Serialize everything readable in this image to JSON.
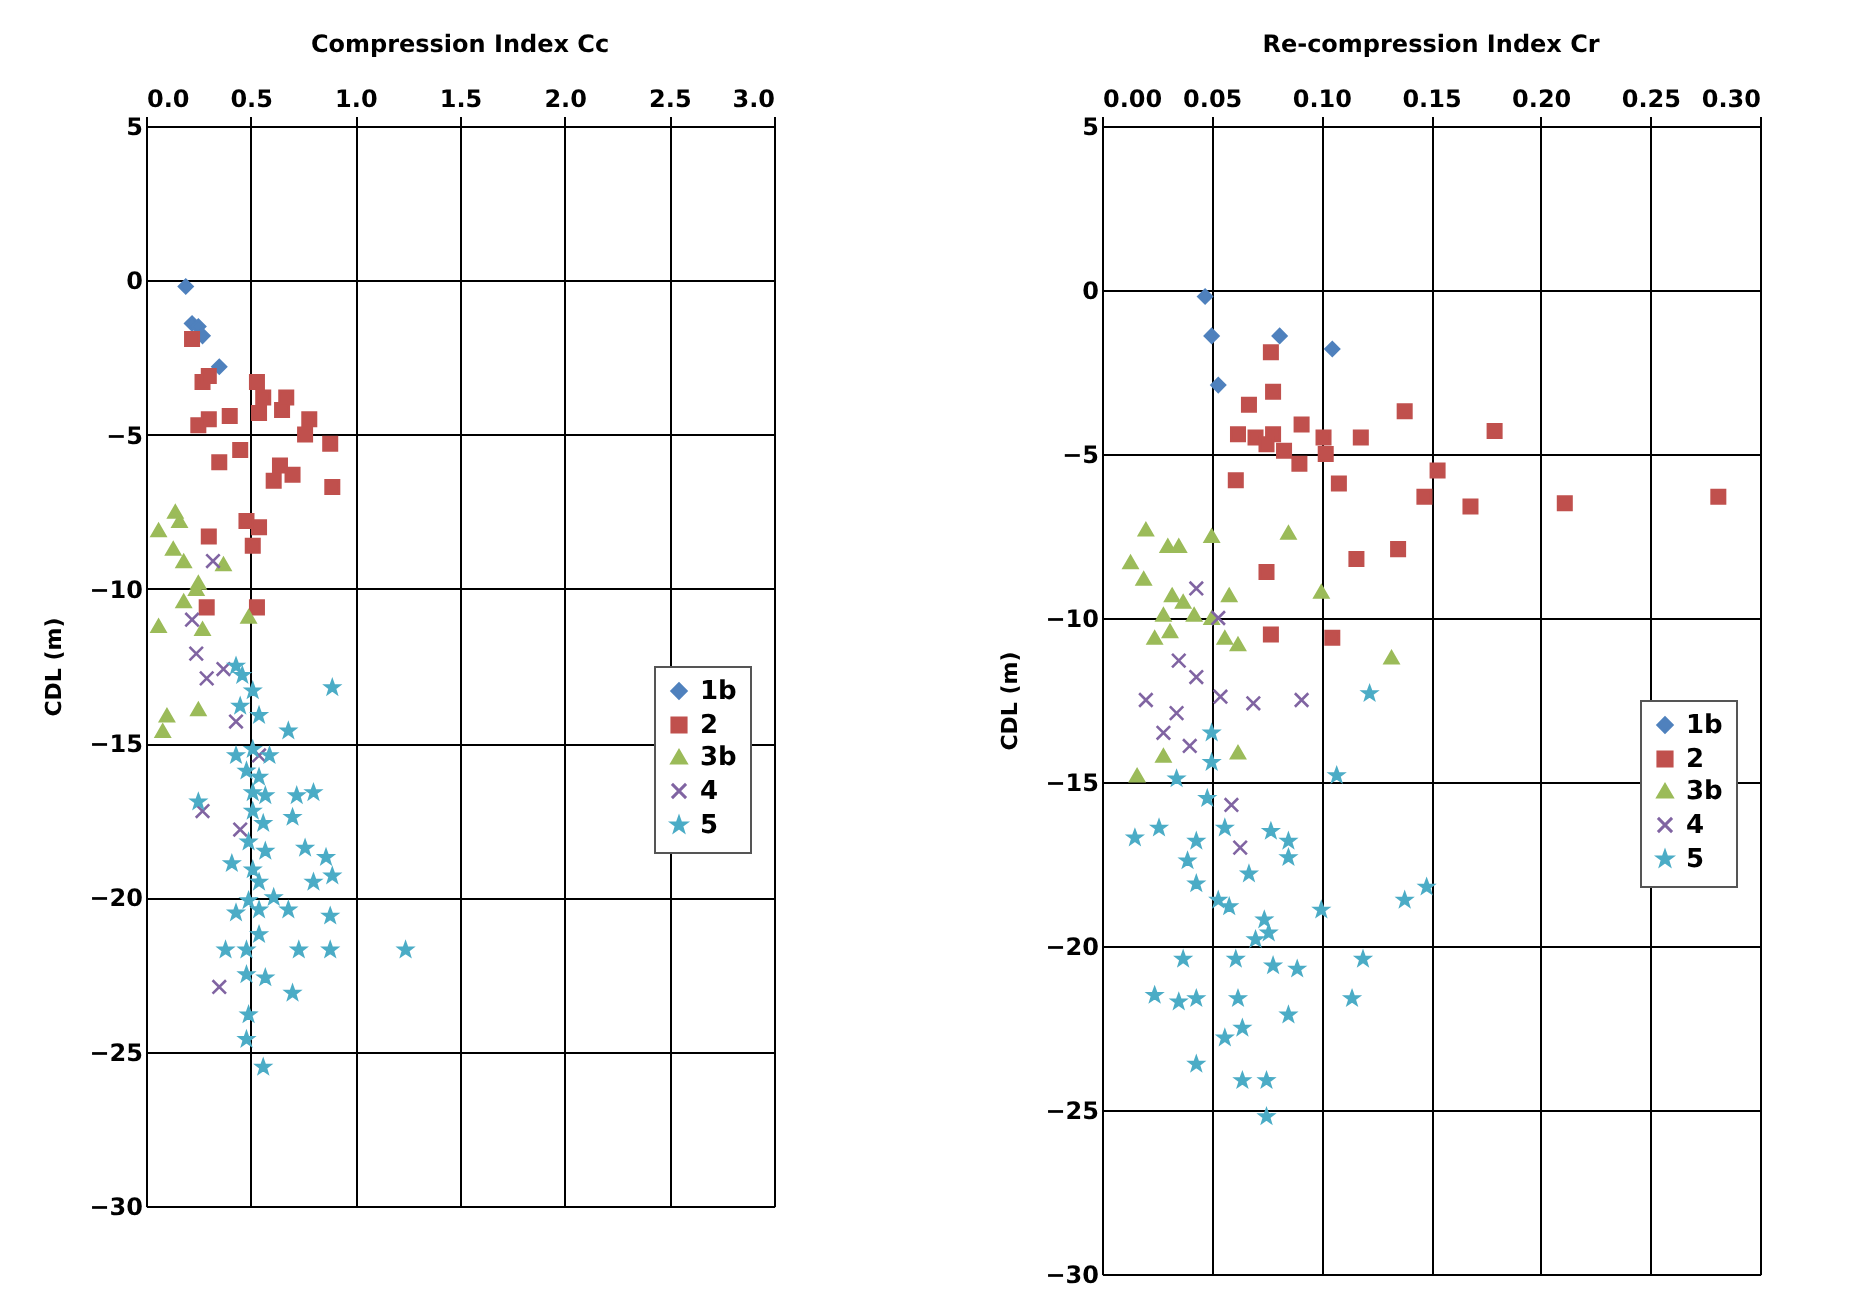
{
  "chart_data": [
    {
      "type": "scatter",
      "title": "Compression Index Cc",
      "ylabel": "CDL (m)",
      "grid": true,
      "legend": "right",
      "xlim": [
        0,
        3
      ],
      "ylim": [
        -30,
        5
      ],
      "xticks": [
        {
          "value": 0,
          "label": "0.0"
        },
        {
          "value": 0.5,
          "label": "0.5"
        },
        {
          "value": 1,
          "label": "1.0"
        },
        {
          "value": 1.5,
          "label": "1.5"
        },
        {
          "value": 2,
          "label": "2.0"
        },
        {
          "value": 2.5,
          "label": "2.5"
        },
        {
          "value": 3,
          "label": "3.0"
        }
      ],
      "yticks": [
        -30,
        -25,
        -20,
        -15,
        -10,
        -5,
        0,
        5
      ],
      "series": [
        {
          "name": "1b",
          "color": "#4f81bd",
          "marker": "diamond",
          "x": [
            0.19,
            0.22,
            0.25,
            0.27,
            0.35
          ],
          "values": [
            -0.2,
            -1.4,
            -1.5,
            -1.8,
            -2.8
          ]
        },
        {
          "name": "2",
          "color": "#c0504d",
          "marker": "square",
          "x": [
            0.22,
            0.27,
            0.3,
            0.25,
            0.3,
            0.4,
            0.53,
            0.56,
            0.54,
            0.67,
            0.65,
            0.78,
            0.76,
            0.88,
            0.35,
            0.45,
            0.64,
            0.61,
            0.7,
            0.89,
            0.3,
            0.48,
            0.54,
            0.51,
            0.29,
            0.53
          ],
          "values": [
            -1.9,
            -3.3,
            -3.1,
            -4.7,
            -4.5,
            -4.4,
            -3.3,
            -3.8,
            -4.3,
            -3.8,
            -4.2,
            -4.5,
            -5.0,
            -5.3,
            -5.9,
            -5.5,
            -6.0,
            -6.5,
            -6.3,
            -6.7,
            -8.3,
            -7.8,
            -8.0,
            -8.6,
            -10.6,
            -10.6
          ]
        },
        {
          "name": "3b",
          "color": "#9bbb59",
          "marker": "triangle",
          "x": [
            0.14,
            0.16,
            0.06,
            0.13,
            0.18,
            0.37,
            0.25,
            0.18,
            0.24,
            0.27,
            0.49,
            0.1,
            0.08,
            0.25,
            0.06
          ],
          "values": [
            -7.5,
            -7.8,
            -8.1,
            -8.7,
            -9.1,
            -9.2,
            -9.8,
            -10.4,
            -10.0,
            -11.3,
            -10.9,
            -14.1,
            -14.6,
            -13.9,
            -11.2
          ]
        },
        {
          "name": "4",
          "color": "#8064a2",
          "marker": "cross",
          "x": [
            0.24,
            0.37,
            0.29,
            0.43,
            0.54,
            0.45,
            0.27,
            0.32,
            0.22,
            0.35
          ],
          "values": [
            -12.1,
            -12.6,
            -12.9,
            -14.3,
            -15.4,
            -17.8,
            -17.2,
            -9.1,
            -11.0,
            -22.9
          ]
        },
        {
          "name": "5",
          "color": "#4bacc6",
          "marker": "star",
          "x": [
            0.43,
            0.46,
            0.51,
            0.45,
            0.54,
            0.68,
            0.43,
            0.51,
            0.59,
            0.48,
            0.54,
            0.51,
            0.57,
            0.72,
            0.8,
            0.51,
            0.56,
            0.7,
            0.49,
            0.57,
            0.76,
            0.86,
            0.89,
            0.41,
            0.51,
            0.54,
            0.8,
            0.61,
            0.49,
            0.43,
            0.54,
            0.68,
            0.88,
            0.38,
            0.48,
            0.54,
            0.73,
            0.88,
            1.24,
            0.48,
            0.57,
            0.7,
            0.49,
            0.48,
            0.56,
            0.89,
            0.25
          ],
          "values": [
            -12.5,
            -12.8,
            -13.3,
            -13.8,
            -14.1,
            -14.6,
            -15.4,
            -15.2,
            -15.4,
            -15.9,
            -16.1,
            -16.6,
            -16.7,
            -16.7,
            -16.6,
            -17.2,
            -17.6,
            -17.4,
            -18.2,
            -18.5,
            -18.4,
            -18.7,
            -19.3,
            -18.9,
            -19.1,
            -19.5,
            -19.5,
            -20.0,
            -20.1,
            -20.5,
            -20.4,
            -20.4,
            -20.6,
            -21.7,
            -21.7,
            -21.2,
            -21.7,
            -21.7,
            -21.7,
            -22.5,
            -22.6,
            -23.1,
            -23.8,
            -24.6,
            -25.5,
            -13.2,
            -16.9
          ]
        }
      ]
    },
    {
      "type": "scatter",
      "title": "Re-compression Index Cr",
      "ylabel": "CDL (m)",
      "grid": true,
      "legend": "right",
      "xlim": [
        0,
        0.3
      ],
      "ylim": [
        -30,
        5
      ],
      "xticks": [
        {
          "value": 0,
          "label": "0.00"
        },
        {
          "value": 0.05,
          "label": "0.05"
        },
        {
          "value": 0.1,
          "label": "0.10"
        },
        {
          "value": 0.15,
          "label": "0.15"
        },
        {
          "value": 0.2,
          "label": "0.20"
        },
        {
          "value": 0.25,
          "label": "0.25"
        },
        {
          "value": 0.3,
          "label": "0.30"
        }
      ],
      "yticks": [
        -30,
        -25,
        -20,
        -15,
        -10,
        -5,
        0,
        5
      ],
      "series": [
        {
          "name": "1b",
          "color": "#4f81bd",
          "marker": "diamond",
          "x": [
            0.047,
            0.05,
            0.053,
            0.081,
            0.105
          ],
          "values": [
            -0.2,
            -1.4,
            -2.9,
            -1.4,
            -1.8
          ]
        },
        {
          "name": "2",
          "color": "#c0504d",
          "marker": "square",
          "x": [
            0.077,
            0.078,
            0.067,
            0.138,
            0.179,
            0.062,
            0.07,
            0.078,
            0.075,
            0.083,
            0.091,
            0.101,
            0.118,
            0.102,
            0.09,
            0.061,
            0.108,
            0.153,
            0.147,
            0.168,
            0.211,
            0.281,
            0.075,
            0.116,
            0.135,
            0.077,
            0.105
          ],
          "values": [
            -1.9,
            -3.1,
            -3.5,
            -3.7,
            -4.3,
            -4.4,
            -4.5,
            -4.4,
            -4.7,
            -4.9,
            -4.1,
            -4.5,
            -4.5,
            -5.0,
            -5.3,
            -5.8,
            -5.9,
            -5.5,
            -6.3,
            -6.6,
            -6.5,
            -6.3,
            -8.6,
            -8.2,
            -7.9,
            -10.5,
            -10.6
          ]
        },
        {
          "name": "3b",
          "color": "#9bbb59",
          "marker": "triangle",
          "x": [
            0.02,
            0.03,
            0.035,
            0.05,
            0.085,
            0.013,
            0.019,
            0.032,
            0.037,
            0.058,
            0.1,
            0.028,
            0.042,
            0.05,
            0.024,
            0.031,
            0.056,
            0.062,
            0.132,
            0.016,
            0.028,
            0.062
          ],
          "values": [
            -7.3,
            -7.8,
            -7.8,
            -7.5,
            -7.4,
            -8.3,
            -8.8,
            -9.3,
            -9.5,
            -9.3,
            -9.2,
            -9.9,
            -9.9,
            -10.0,
            -10.6,
            -10.4,
            -10.6,
            -10.8,
            -11.2,
            -14.8,
            -14.2,
            -14.1
          ]
        },
        {
          "name": "4",
          "color": "#8064a2",
          "marker": "cross",
          "x": [
            0.035,
            0.02,
            0.034,
            0.043,
            0.054,
            0.069,
            0.028,
            0.04,
            0.059,
            0.063,
            0.053,
            0.043,
            0.091
          ],
          "values": [
            -11.3,
            -12.5,
            -12.9,
            -11.8,
            -12.4,
            -12.6,
            -13.5,
            -13.9,
            -15.7,
            -17.0,
            -10.0,
            -9.1,
            -12.5
          ]
        },
        {
          "name": "5",
          "color": "#4bacc6",
          "marker": "star",
          "x": [
            0.05,
            0.048,
            0.05,
            0.034,
            0.015,
            0.026,
            0.043,
            0.039,
            0.056,
            0.077,
            0.085,
            0.085,
            0.067,
            0.053,
            0.058,
            0.043,
            0.074,
            0.076,
            0.07,
            0.078,
            0.089,
            0.1,
            0.119,
            0.114,
            0.138,
            0.148,
            0.037,
            0.024,
            0.035,
            0.043,
            0.061,
            0.062,
            0.064,
            0.085,
            0.043,
            0.056,
            0.064,
            0.075,
            0.075,
            0.122,
            0.107
          ],
          "values": [
            -13.5,
            -15.5,
            -14.4,
            -14.9,
            -16.7,
            -16.4,
            -16.8,
            -17.4,
            -16.4,
            -16.5,
            -16.8,
            -17.3,
            -17.8,
            -18.6,
            -18.8,
            -18.1,
            -19.2,
            -19.6,
            -19.8,
            -20.6,
            -20.7,
            -18.9,
            -20.4,
            -21.6,
            -18.6,
            -18.2,
            -20.4,
            -21.5,
            -21.7,
            -21.6,
            -20.4,
            -21.6,
            -22.5,
            -22.1,
            -23.6,
            -22.8,
            -24.1,
            -24.1,
            -25.2,
            -12.3,
            -14.8
          ]
        }
      ]
    }
  ]
}
